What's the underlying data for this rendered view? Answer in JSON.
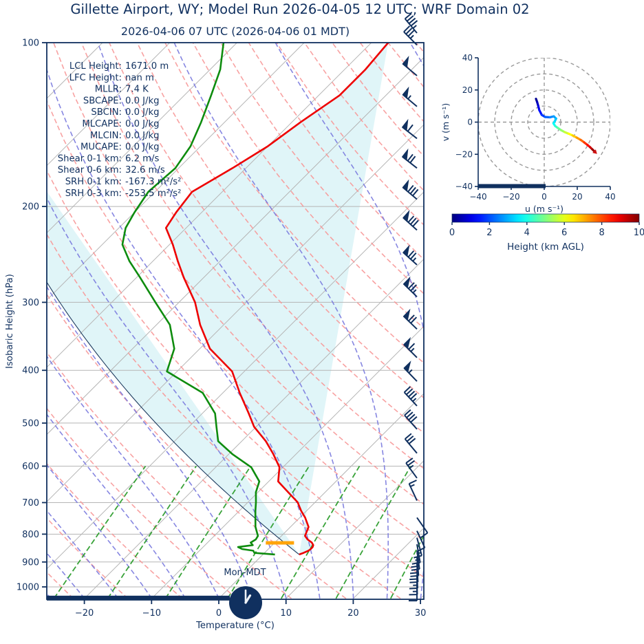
{
  "titles": {
    "main": "Gillette  Airport, WY; Model Run 2026-04-05 12 UTC; WRF Domain 02",
    "sub": "2026-04-06 07 UTC  (2026-04-06 01 MDT)"
  },
  "stats": [
    {
      "label": "LCL Height:",
      "value": "1671.0 m"
    },
    {
      "label": "LFC Height:",
      "value": "nan m"
    },
    {
      "label": "MLLR:",
      "value": "7.4 K"
    },
    {
      "label": "SBCAPE:",
      "value": "0.0 J/kg"
    },
    {
      "label": "SBCIN:",
      "value": "0.0 J/kg"
    },
    {
      "label": "MLCAPE:",
      "value": "0.0 J/kg"
    },
    {
      "label": "MLCIN:",
      "value": "0.0 J/kg"
    },
    {
      "label": "MUCAPE:",
      "value": "0.0 J/kg"
    },
    {
      "label": "Shear 0-1 km:",
      "value": "6.2 m/s"
    },
    {
      "label": "Shear 0-6 km:",
      "value": "32.6 m/s"
    },
    {
      "label": "SRH 0-1 km:",
      "value": "-167.3 m²/s²"
    },
    {
      "label": "SRH 0-3 km:",
      "value": "-253.5 m²/s²"
    }
  ],
  "colors": {
    "navy": "#10305f",
    "temperature": "#ee0000",
    "dewpoint": "#0e8c0e",
    "dry_adiabat": "#f89898",
    "moist_adiabat": "#7a7ade",
    "mixing_ratio": "#2e9e2e",
    "isotherm": "#b5b5b5",
    "isobar": "#b5b5b5",
    "cin_fill": "#e0f5f8",
    "lcl_bar": "#ffa408",
    "ring_gray": "#999999",
    "hand": "#eef2f7"
  },
  "chart_data": {
    "type": "line",
    "subtype": "skewt-sounding-with-hodograph",
    "skewt": {
      "xlabel": "Temperature (°C)",
      "ylabel": "Isobaric Height (hPa)",
      "x_ticks": [
        -20,
        -10,
        0,
        10,
        20,
        30
      ],
      "x_tick_labels": [
        "−20",
        "−10",
        "0",
        "10",
        "20",
        "30"
      ],
      "p_ticks": [
        100,
        200,
        300,
        400,
        500,
        600,
        700,
        800,
        900,
        1000
      ],
      "xlim_C": [
        -25.6,
        30.5
      ],
      "plim_hPa": [
        100,
        1050
      ],
      "surface_clock_label": "Mon-MDT",
      "pressure_hPa": [
        100,
        112,
        125,
        140,
        155,
        170,
        188,
        205,
        219,
        235,
        252,
        270,
        300,
        330,
        365,
        402,
        440,
        480,
        508,
        540,
        570,
        603,
        640,
        670,
        699,
        725,
        746,
        776,
        806,
        818,
        829,
        838,
        845,
        852,
        858,
        866,
        872
      ],
      "temperature_C": [
        -57.5,
        -56.9,
        -56.9,
        -58.7,
        -60,
        -62,
        -64.5,
        -63.8,
        -63,
        -59.5,
        -56.3,
        -53,
        -47.6,
        -43.5,
        -38.5,
        -31.8,
        -27.5,
        -23.1,
        -20.3,
        -16.4,
        -13.4,
        -10.5,
        -8.6,
        -5.5,
        -2.6,
        -0.8,
        0.8,
        2.7,
        3.5,
        4.4,
        5.5,
        6.1,
        6.3,
        6.3,
        6.2,
        5.8,
        5.4
      ],
      "dewpoint_C": [
        -82,
        -78.5,
        -76,
        -73.5,
        -71.5,
        -70.5,
        -71,
        -70,
        -69,
        -67,
        -63.5,
        -59.5,
        -53.5,
        -48,
        -43.8,
        -41.5,
        -33,
        -28.1,
        -25.9,
        -23.5,
        -19.5,
        -14.7,
        -11.4,
        -10.3,
        -8.8,
        -7.6,
        -6.6,
        -5.2,
        -3.5,
        -3.3,
        -3.6,
        -2.9,
        -4.8,
        -3.9,
        -2.0,
        -1.5,
        1.8
      ],
      "parcel": {
        "surface_p_hPa": 872,
        "surface_T_C": 5.4
      },
      "lcl_bar": {
        "p_hPa": 830,
        "T_from_C": -1.3,
        "T_to_C": 2.9
      },
      "below_ground_bar": {
        "T_end_C": 0.2
      },
      "wind_barbs_p_dir_kt": [
        [
          96,
          320,
          45
        ],
        [
          101,
          315,
          35
        ],
        [
          115,
          310,
          50
        ],
        [
          131,
          310,
          55
        ],
        [
          150,
          308,
          60
        ],
        [
          170,
          308,
          70
        ],
        [
          194,
          310,
          80
        ],
        [
          221,
          312,
          80
        ],
        [
          256,
          312,
          75
        ],
        [
          293,
          314,
          75
        ],
        [
          336,
          314,
          70
        ],
        [
          379,
          315,
          65
        ],
        [
          419,
          316,
          55
        ],
        [
          465,
          317,
          45
        ],
        [
          513,
          318,
          40
        ],
        [
          568,
          320,
          30
        ],
        [
          631,
          324,
          25
        ],
        [
          694,
          335,
          15
        ],
        [
          746,
          145,
          10
        ],
        [
          789,
          155,
          10
        ],
        [
          812,
          165,
          15
        ],
        [
          835,
          170,
          15
        ],
        [
          858,
          172,
          20
        ],
        [
          882,
          175,
          20
        ],
        [
          906,
          177,
          20
        ],
        [
          930,
          178,
          15
        ],
        [
          955,
          179,
          15
        ],
        [
          980,
          180,
          10
        ]
      ]
    },
    "hodograph": {
      "xlabel": "u (m s⁻¹)",
      "ylabel": "v (m s⁻¹)",
      "tick_values": [
        -40,
        -20,
        0,
        20,
        40
      ],
      "tick_labels": [
        "−40",
        "−20",
        "0",
        "20",
        "40"
      ],
      "rings_ms": [
        10,
        20,
        30,
        40
      ],
      "height_km": [
        0,
        0.4,
        0.8,
        1.2,
        1.6,
        2.0,
        2.4,
        2.7,
        3.0,
        3.3,
        3.6,
        4.0,
        4.5,
        5.0,
        5.5,
        6.0,
        6.5,
        7.0,
        7.5,
        8.0,
        8.5,
        9.0,
        9.5,
        10.0
      ],
      "u_ms": [
        -5.0,
        -4.3,
        -3.6,
        -3.0,
        -1.5,
        0.5,
        3.5,
        5.8,
        7.2,
        6.4,
        5.6,
        6.6,
        8.2,
        10.2,
        12.4,
        14.8,
        17.2,
        19.6,
        22.0,
        24.2,
        26.2,
        27.8,
        29.2,
        30.2
      ],
      "v_ms": [
        14.5,
        12.5,
        10.0,
        7.5,
        4.5,
        3.2,
        3.0,
        3.6,
        2.2,
        0.6,
        -0.8,
        -2.4,
        -3.6,
        -5.0,
        -6.2,
        -7.2,
        -8.3,
        -9.6,
        -11.0,
        -12.6,
        -14.2,
        -15.6,
        -17.0,
        -18.0
      ],
      "bar_u_end_ms": 0
    },
    "colorbar": {
      "label": "Height (km AGL)",
      "min": 0,
      "max": 10,
      "ticks": [
        0,
        2,
        4,
        6,
        8,
        10
      ],
      "colormap": "jet"
    }
  }
}
